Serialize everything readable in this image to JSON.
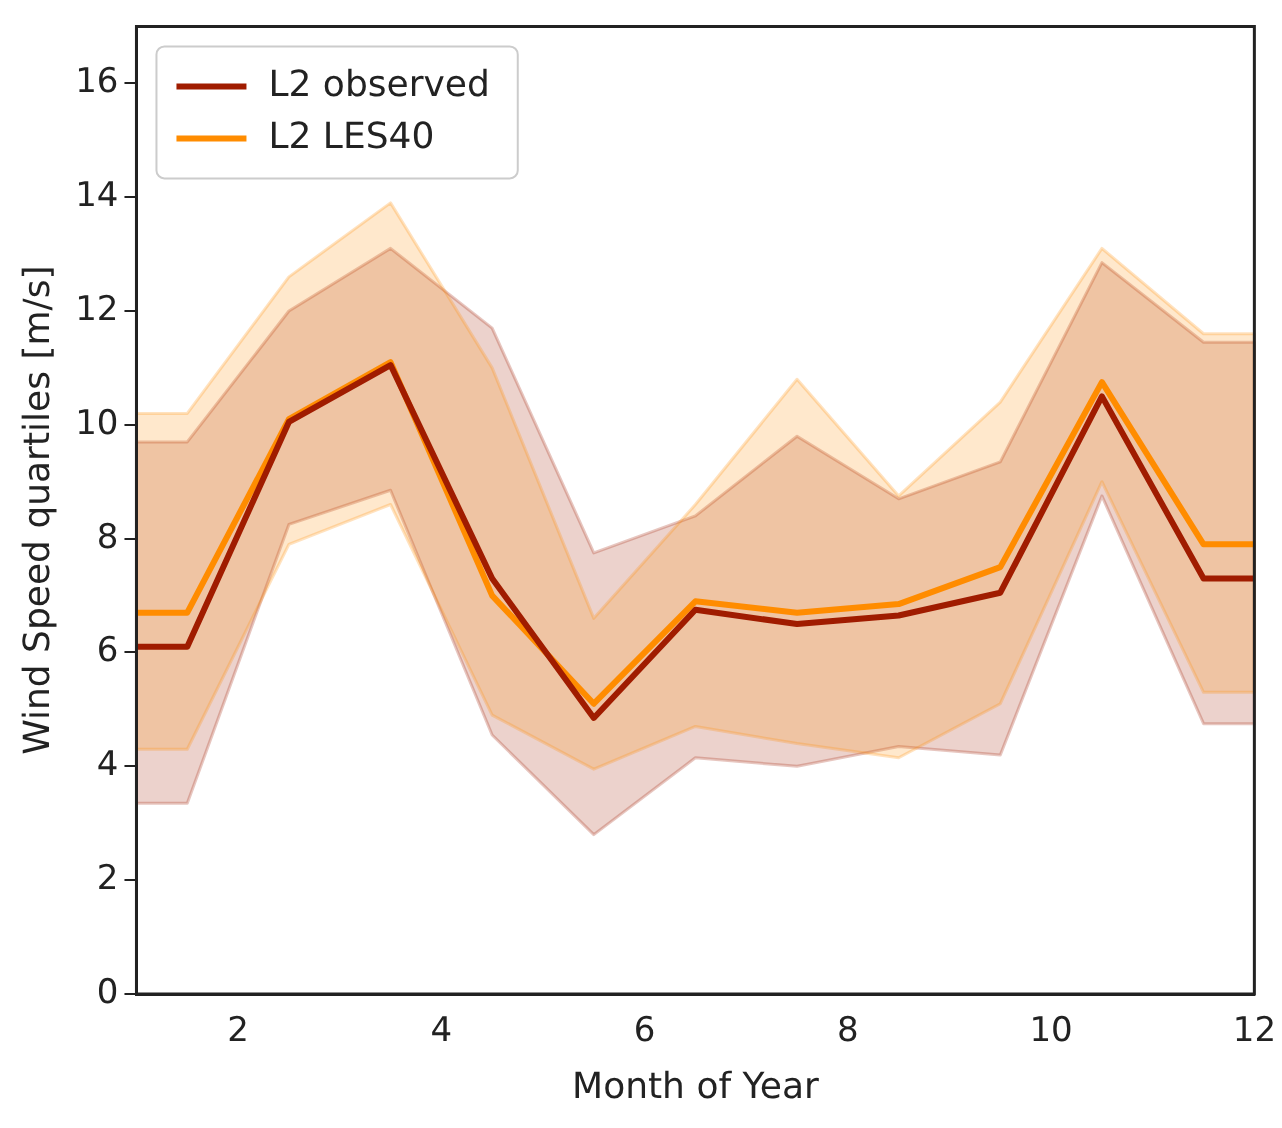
{
  "chart_data": {
    "type": "line",
    "xlabel": "Month of Year",
    "ylabel": "Wind Speed quartiles [m/s]",
    "x": [
      1,
      1.5,
      2.5,
      3.5,
      4.5,
      5.5,
      6.5,
      7.5,
      8.5,
      9.5,
      10.5,
      11.5,
      12
    ],
    "series": [
      {
        "name": "L2 observed",
        "color": "#a01c00",
        "values": [
          6.1,
          6.1,
          10.05,
          11.05,
          7.3,
          4.85,
          6.75,
          6.5,
          6.65,
          7.05,
          10.5,
          7.3,
          7.3
        ],
        "lower": [
          3.35,
          3.35,
          8.25,
          8.85,
          4.55,
          2.8,
          4.15,
          4.0,
          4.35,
          4.2,
          8.75,
          4.75,
          4.75
        ],
        "upper": [
          9.7,
          9.7,
          12.0,
          13.1,
          11.7,
          7.75,
          8.4,
          9.8,
          8.7,
          9.35,
          12.85,
          11.45,
          11.45
        ]
      },
      {
        "name": "L2 LES40",
        "color": "#ff8c00",
        "values": [
          6.7,
          6.7,
          10.1,
          11.1,
          7.0,
          5.1,
          6.9,
          6.7,
          6.85,
          7.5,
          10.75,
          7.9,
          7.9
        ],
        "lower": [
          4.3,
          4.3,
          7.9,
          8.6,
          4.9,
          3.95,
          4.7,
          4.4,
          4.15,
          5.1,
          9.0,
          5.3,
          5.3
        ],
        "upper": [
          10.2,
          10.2,
          12.6,
          13.9,
          11.0,
          6.6,
          8.6,
          10.8,
          8.75,
          10.4,
          13.1,
          11.6,
          11.6
        ]
      }
    ],
    "xlim": [
      1,
      12
    ],
    "xticks": [
      2,
      4,
      6,
      8,
      10,
      12
    ],
    "ylim": [
      0,
      17
    ],
    "yticks": [
      0,
      2,
      4,
      6,
      8,
      10,
      12,
      14,
      16
    ],
    "grid": false,
    "legend": "top left",
    "marker": "none",
    "line_style": "solid"
  }
}
